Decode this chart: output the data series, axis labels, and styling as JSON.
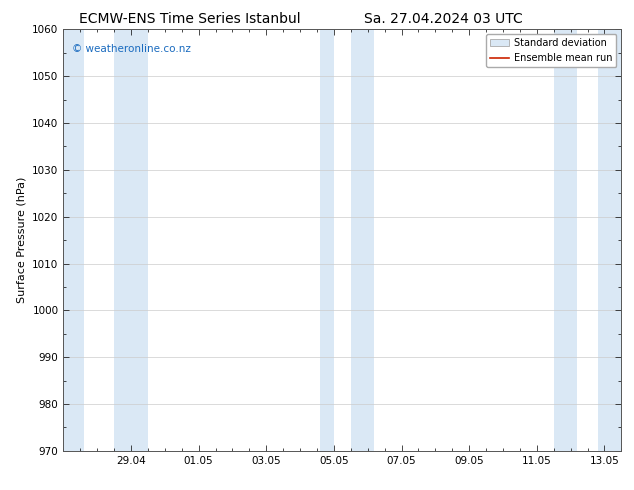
{
  "title_left": "ECMW-ENS Time Series Istanbul",
  "title_right": "Sa. 27.04.2024 03 UTC",
  "ylabel": "Surface Pressure (hPa)",
  "ylim": [
    970,
    1060
  ],
  "yticks": [
    970,
    980,
    990,
    1000,
    1010,
    1020,
    1030,
    1040,
    1050,
    1060
  ],
  "xlim_start": 0.0,
  "xlim_end": 16.5,
  "xtick_labels": [
    "29.04",
    "01.05",
    "03.05",
    "05.05",
    "07.05",
    "09.05",
    "11.05",
    "13.05"
  ],
  "xtick_positions": [
    2.0,
    4.0,
    6.0,
    8.0,
    10.0,
    12.0,
    14.0,
    16.0
  ],
  "shade_bands": [
    {
      "x_start": 0.0,
      "x_end": 0.6
    },
    {
      "x_start": 1.5,
      "x_end": 2.5
    },
    {
      "x_start": 7.6,
      "x_end": 8.0
    },
    {
      "x_start": 8.5,
      "x_end": 9.2
    },
    {
      "x_start": 14.5,
      "x_end": 15.2
    },
    {
      "x_start": 15.8,
      "x_end": 16.5
    }
  ],
  "shade_color": "#dae8f5",
  "shade_edge_color": "#b8d4ec",
  "watermark": "© weatheronline.co.nz",
  "watermark_color": "#1a6bbf",
  "legend_mean_color": "#cc2200",
  "bg_color": "#ffffff",
  "grid_color": "#cccccc",
  "title_fontsize": 10,
  "axis_fontsize": 8,
  "tick_fontsize": 7.5
}
